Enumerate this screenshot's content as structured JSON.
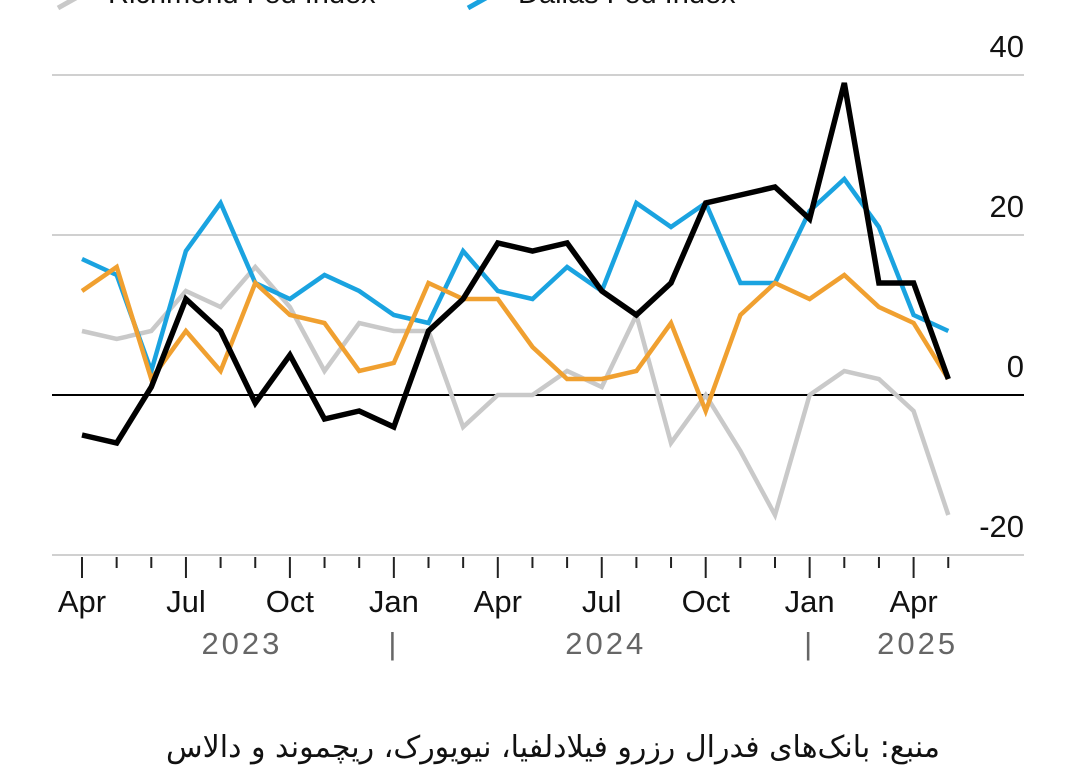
{
  "chart_data": {
    "type": "line",
    "y_ticks": [
      40,
      20,
      0,
      -20
    ],
    "y_tick_labels": [
      "40",
      "20",
      "0",
      "-20"
    ],
    "ylim": [
      -20,
      40
    ],
    "x_ticks": [
      {
        "label": "Apr",
        "index": 0
      },
      {
        "label": "Jul",
        "index": 3
      },
      {
        "label": "Oct",
        "index": 6
      },
      {
        "label": "Jan",
        "index": 9
      },
      {
        "label": "Apr",
        "index": 12
      },
      {
        "label": "Jul",
        "index": 15
      },
      {
        "label": "Oct",
        "index": 18
      },
      {
        "label": "Jan",
        "index": 21
      },
      {
        "label": "Apr",
        "index": 24
      }
    ],
    "years": [
      {
        "label": "2023",
        "center_index": 4.5
      },
      {
        "label": "2024",
        "center_index": 15
      },
      {
        "label": "2025",
        "center_index": 24
      }
    ],
    "year_separators": [
      9,
      21
    ],
    "separator_glyph": "|",
    "x_count": 26,
    "series": [
      {
        "name": "Richmond Fed Index",
        "color": "#c9c9c9",
        "values": [
          8,
          7,
          8,
          13,
          11,
          16,
          11,
          3,
          9,
          8,
          8,
          -4,
          0,
          0,
          3,
          1,
          10,
          -6,
          0,
          -7,
          -15,
          0,
          3,
          2,
          -2,
          -15
        ]
      },
      {
        "name": "Dallas Fed Index",
        "color": "#1aa3e0",
        "values": [
          17,
          15,
          3,
          18,
          24,
          14,
          12,
          15,
          13,
          10,
          9,
          18,
          13,
          12,
          16,
          13,
          24,
          21,
          24,
          14,
          14,
          23,
          27,
          21,
          10,
          8
        ]
      },
      {
        "name": "",
        "color": "#f0a030",
        "values": [
          13,
          16,
          2,
          8,
          3,
          14,
          10,
          9,
          3,
          4,
          14,
          12,
          12,
          6,
          2,
          2,
          3,
          9,
          -2,
          10,
          14,
          12,
          15,
          11,
          9,
          2
        ]
      },
      {
        "name": "",
        "color": "#000000",
        "values": [
          -5,
          -6,
          1,
          12,
          8,
          -1,
          5,
          -3,
          -2,
          -4,
          8,
          12,
          19,
          18,
          19,
          13,
          10,
          14,
          24,
          25,
          26,
          22,
          39,
          14,
          14,
          2
        ]
      }
    ]
  },
  "caption_text": "منبع: بانک‌های فدرال رزرو فیلادلفیا، نیویورک، ریچموند و دالاس"
}
